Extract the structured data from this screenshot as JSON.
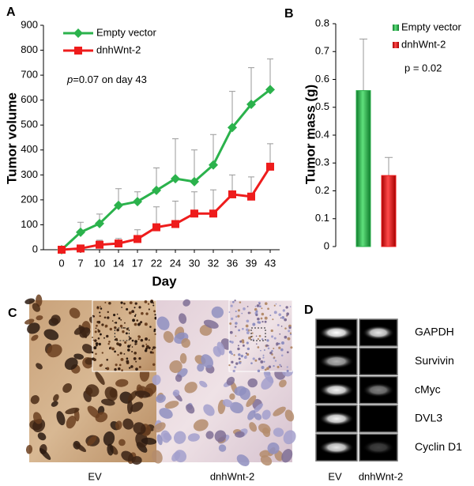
{
  "chart_data": [
    {
      "type": "line",
      "panel": "A",
      "xlabel": "Day",
      "ylabel": "Tumor volume",
      "categories": [
        0,
        7,
        10,
        14,
        17,
        22,
        24,
        30,
        32,
        36,
        39,
        43
      ],
      "ylim": [
        0,
        900
      ],
      "yticks": [
        0,
        100,
        200,
        300,
        400,
        500,
        600,
        700,
        800,
        900
      ],
      "annotation": {
        "italic": "p",
        "text": "=0.07 on day 43"
      },
      "series": [
        {
          "name": "Empty vector",
          "color": "#2bb24c",
          "marker": "diamond",
          "values": [
            0,
            70,
            105,
            178,
            193,
            238,
            285,
            273,
            340,
            490,
            583,
            642
          ],
          "errors": [
            0,
            40,
            38,
            67,
            39,
            90,
            160,
            127,
            122,
            145,
            147,
            123
          ]
        },
        {
          "name": "dnhWnt-2",
          "color": "#ee1c1c",
          "marker": "square",
          "values": [
            0,
            5,
            20,
            25,
            43,
            90,
            103,
            145,
            145,
            222,
            213,
            333
          ],
          "errors": [
            0,
            5,
            18,
            20,
            37,
            82,
            92,
            87,
            95,
            78,
            79,
            92
          ]
        }
      ]
    },
    {
      "type": "bar",
      "panel": "B",
      "ylabel": "Tumor mass (g)",
      "ylim": [
        0,
        0.8
      ],
      "yticks": [
        0,
        0.1,
        0.2,
        0.3,
        0.4,
        0.5,
        0.6,
        0.7,
        0.8
      ],
      "annotation": "p = 0.02",
      "series": [
        {
          "name": "Empty vector",
          "color": "#2bb24c",
          "values": [
            0.56
          ],
          "errors": [
            0.185
          ]
        },
        {
          "name": "dnhWnt-2",
          "color": "#ee1c1c",
          "values": [
            0.255
          ],
          "errors": [
            0.065
          ]
        }
      ]
    }
  ],
  "panel_c": {
    "label": "C",
    "images": [
      "EV",
      "dnhWnt-2"
    ]
  },
  "panel_d": {
    "label": "D",
    "genes": [
      "GAPDH",
      "Survivin",
      "cMyc",
      "DVL3",
      "Cyclin D1"
    ],
    "lanes": [
      "EV",
      "dnhWnt-2"
    ]
  }
}
